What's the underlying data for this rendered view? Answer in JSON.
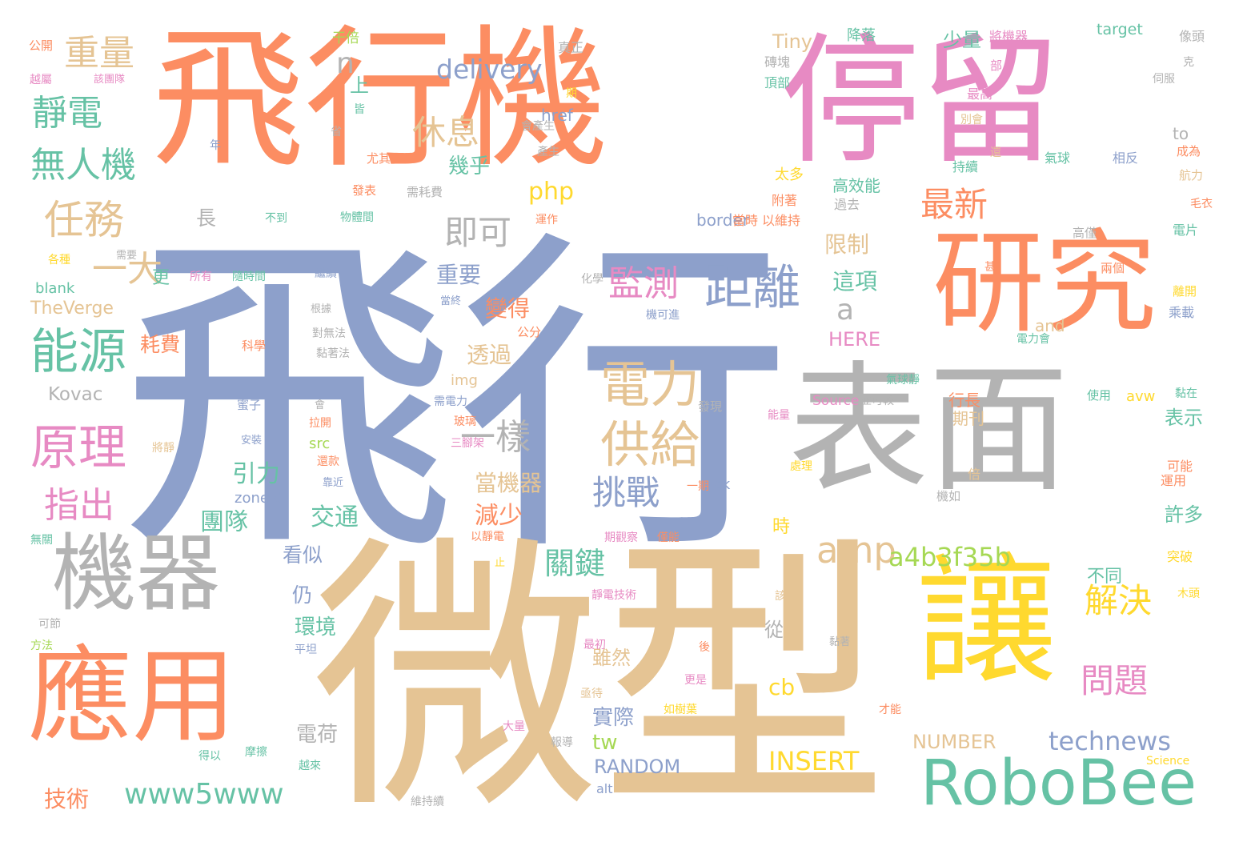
{
  "palette": {
    "orange": "#FC8D62",
    "blue": "#8DA0CB",
    "pink": "#E78AC3",
    "tan": "#E5C494",
    "gray": "#B3B3B3",
    "yellow": "#FFD92F",
    "green": "#66C2A5",
    "lime": "#A6D854"
  },
  "words": [
    {
      "text": "飛行",
      "color": "blue"
    },
    {
      "text": "微型",
      "color": "tan"
    },
    {
      "text": "飛行機",
      "color": "orange"
    },
    {
      "text": "停留",
      "color": "pink"
    },
    {
      "text": "表面",
      "color": "gray"
    },
    {
      "text": "研究",
      "color": "orange"
    },
    {
      "text": "讓",
      "color": "yellow"
    },
    {
      "text": "應用",
      "color": "orange"
    },
    {
      "text": "機器",
      "color": "gray"
    },
    {
      "text": "RoboBee",
      "color": "green"
    },
    {
      "text": "電力",
      "color": "tan"
    },
    {
      "text": "供給",
      "color": "tan"
    },
    {
      "text": "距離",
      "color": "blue"
    },
    {
      "text": "能源",
      "color": "green"
    },
    {
      "text": "原理",
      "color": "pink"
    },
    {
      "text": "任務",
      "color": "tan"
    },
    {
      "text": "重量",
      "color": "tan"
    },
    {
      "text": "靜電",
      "color": "green"
    },
    {
      "text": "無人機",
      "color": "green"
    },
    {
      "text": "一大",
      "color": "tan"
    },
    {
      "text": "指出",
      "color": "pink"
    },
    {
      "text": "監測",
      "color": "pink"
    },
    {
      "text": "即可",
      "color": "gray"
    },
    {
      "text": "休息",
      "color": "tan"
    },
    {
      "text": "最新",
      "color": "orange"
    },
    {
      "text": "一樣",
      "color": "gray"
    },
    {
      "text": "挑戰",
      "color": "blue"
    },
    {
      "text": "amp",
      "color": "tan"
    },
    {
      "text": "解決",
      "color": "yellow"
    },
    {
      "text": "問題",
      "color": "pink"
    },
    {
      "text": "關鍵",
      "color": "green"
    },
    {
      "text": "a4b3f35b",
      "color": "lime"
    },
    {
      "text": "www5www",
      "color": "green"
    },
    {
      "text": "technews",
      "color": "blue"
    },
    {
      "text": "INSERT",
      "color": "yellow"
    },
    {
      "text": "delivery",
      "color": "blue"
    },
    {
      "text": "php",
      "color": "yellow"
    },
    {
      "text": "n",
      "color": "gray"
    },
    {
      "text": "a",
      "color": "gray"
    },
    {
      "text": "cb",
      "color": "yellow"
    },
    {
      "text": "tw",
      "color": "lime"
    },
    {
      "text": "RANDOM",
      "color": "blue"
    },
    {
      "text": "NUMBER",
      "color": "tan"
    },
    {
      "text": "Kovac",
      "color": "gray"
    },
    {
      "text": "TheVerge",
      "color": "tan"
    },
    {
      "text": "HERE",
      "color": "pink"
    },
    {
      "text": "Tiny",
      "color": "tan"
    },
    {
      "text": "target",
      "color": "green"
    },
    {
      "text": "border",
      "color": "blue"
    },
    {
      "text": "href",
      "color": "blue"
    },
    {
      "text": "blank",
      "color": "green"
    },
    {
      "text": "img",
      "color": "tan"
    },
    {
      "text": "src",
      "color": "lime"
    },
    {
      "text": "zoneid",
      "color": "blue"
    },
    {
      "text": "alt",
      "color": "blue"
    },
    {
      "text": "and",
      "color": "tan"
    },
    {
      "text": "to",
      "color": "gray"
    },
    {
      "text": "ck",
      "color": "blue"
    },
    {
      "text": "avw",
      "color": "yellow"
    },
    {
      "text": "Source",
      "color": "pink"
    },
    {
      "text": "Science",
      "color": "yellow"
    },
    {
      "text": "團隊",
      "color": "green"
    },
    {
      "text": "引力",
      "color": "green"
    },
    {
      "text": "交通",
      "color": "green"
    },
    {
      "text": "當機器",
      "color": "tan"
    },
    {
      "text": "減少",
      "color": "orange"
    },
    {
      "text": "透過",
      "color": "tan"
    },
    {
      "text": "變得",
      "color": "orange"
    },
    {
      "text": "重要",
      "color": "blue"
    },
    {
      "text": "這項",
      "color": "green"
    },
    {
      "text": "限制",
      "color": "tan"
    },
    {
      "text": "幾乎",
      "color": "green"
    },
    {
      "text": "少量",
      "color": "green"
    },
    {
      "text": "上",
      "color": "green"
    },
    {
      "text": "長",
      "color": "gray"
    },
    {
      "text": "更",
      "color": "green"
    },
    {
      "text": "耗費",
      "color": "orange"
    },
    {
      "text": "技術",
      "color": "orange"
    },
    {
      "text": "電荷",
      "color": "gray"
    },
    {
      "text": "環境",
      "color": "green"
    },
    {
      "text": "看似",
      "color": "blue"
    },
    {
      "text": "仍",
      "color": "blue"
    },
    {
      "text": "雖然",
      "color": "tan"
    },
    {
      "text": "實際",
      "color": "blue"
    },
    {
      "text": "從",
      "color": "gray"
    },
    {
      "text": "時",
      "color": "yellow"
    },
    {
      "text": "不同",
      "color": "green"
    },
    {
      "text": "表示",
      "color": "green"
    },
    {
      "text": "許多",
      "color": "green"
    },
    {
      "text": "行長",
      "color": "orange"
    },
    {
      "text": "期刊",
      "color": "tan"
    },
    {
      "text": "高效能",
      "color": "green"
    },
    {
      "text": "電片",
      "color": "green"
    },
    {
      "text": "航力",
      "color": "tan"
    },
    {
      "text": "成為",
      "color": "orange"
    },
    {
      "text": "氣球",
      "color": "green"
    },
    {
      "text": "相反",
      "color": "blue"
    },
    {
      "text": "持續",
      "color": "green"
    },
    {
      "text": "太多",
      "color": "yellow"
    },
    {
      "text": "附著",
      "color": "orange"
    },
    {
      "text": "以維持",
      "color": "orange"
    },
    {
      "text": "當時",
      "color": "orange"
    },
    {
      "text": "過去",
      "color": "gray"
    },
    {
      "text": "頂部",
      "color": "green"
    },
    {
      "text": "磚塊",
      "color": "gray"
    },
    {
      "text": "降落",
      "color": "green"
    },
    {
      "text": "將機器",
      "color": "pink"
    },
    {
      "text": "像頭",
      "color": "gray"
    },
    {
      "text": "最高",
      "color": "pink"
    },
    {
      "text": "別會",
      "color": "tan"
    },
    {
      "text": "毛衣",
      "color": "orange"
    },
    {
      "text": "高僅",
      "color": "gray"
    },
    {
      "text": "兩個",
      "color": "orange"
    },
    {
      "text": "離開",
      "color": "yellow"
    },
    {
      "text": "乘載",
      "color": "blue"
    },
    {
      "text": "電力會",
      "color": "green"
    },
    {
      "text": "黏在",
      "color": "green"
    },
    {
      "text": "使用",
      "color": "green"
    },
    {
      "text": "可能",
      "color": "orange"
    },
    {
      "text": "運用",
      "color": "orange"
    },
    {
      "text": "突破",
      "color": "yellow"
    },
    {
      "text": "倍",
      "color": "tan"
    },
    {
      "text": "機如",
      "color": "gray"
    },
    {
      "text": "公開",
      "color": "orange"
    },
    {
      "text": "越屬",
      "color": "pink"
    },
    {
      "text": "該團隊",
      "color": "pink"
    },
    {
      "text": "干倍",
      "color": "lime"
    },
    {
      "text": "真正",
      "color": "gray"
    },
    {
      "text": "期",
      "color": "yellow"
    },
    {
      "text": "會產生",
      "color": "gray"
    },
    {
      "text": "產生",
      "color": "gray"
    },
    {
      "text": "年",
      "color": "blue"
    },
    {
      "text": "尤其",
      "color": "orange"
    },
    {
      "text": "發表",
      "color": "orange"
    },
    {
      "text": "需耗費",
      "color": "gray"
    },
    {
      "text": "不到",
      "color": "green"
    },
    {
      "text": "物體間",
      "color": "green"
    },
    {
      "text": "運作",
      "color": "orange"
    },
    {
      "text": "各種",
      "color": "yellow"
    },
    {
      "text": "需要",
      "color": "gray"
    },
    {
      "text": "所有",
      "color": "pink"
    },
    {
      "text": "隨時間",
      "color": "green"
    },
    {
      "text": "繼續",
      "color": "blue"
    },
    {
      "text": "化學",
      "color": "gray"
    },
    {
      "text": "根據",
      "color": "gray"
    },
    {
      "text": "當終",
      "color": "blue"
    },
    {
      "text": "科學",
      "color": "orange"
    },
    {
      "text": "對無法",
      "color": "gray"
    },
    {
      "text": "黏著法",
      "color": "gray"
    },
    {
      "text": "機可進",
      "color": "blue"
    },
    {
      "text": "公分",
      "color": "orange"
    },
    {
      "text": "需電力",
      "color": "blue"
    },
    {
      "text": "玻璃",
      "color": "orange"
    },
    {
      "text": "三腳架",
      "color": "pink"
    },
    {
      "text": "蜜子",
      "color": "blue"
    },
    {
      "text": "會",
      "color": "gray"
    },
    {
      "text": "拉開",
      "color": "orange"
    },
    {
      "text": "安裝",
      "color": "blue"
    },
    {
      "text": "還款",
      "color": "orange"
    },
    {
      "text": "靠近",
      "color": "blue"
    },
    {
      "text": "將靜",
      "color": "tan"
    },
    {
      "text": "發現",
      "color": "gray"
    },
    {
      "text": "一期",
      "color": "orange"
    },
    {
      "text": "期觀察",
      "color": "pink"
    },
    {
      "text": "僅能",
      "color": "orange"
    },
    {
      "text": "以靜電",
      "color": "orange"
    },
    {
      "text": "止",
      "color": "yellow"
    },
    {
      "text": "靜電技術",
      "color": "pink"
    },
    {
      "text": "最初",
      "color": "pink"
    },
    {
      "text": "亟待",
      "color": "tan"
    },
    {
      "text": "如樹葉",
      "color": "yellow"
    },
    {
      "text": "大量",
      "color": "pink"
    },
    {
      "text": "報導",
      "color": "gray"
    },
    {
      "text": "更是",
      "color": "pink"
    },
    {
      "text": "後",
      "color": "orange"
    },
    {
      "text": "黏著",
      "color": "gray"
    },
    {
      "text": "才能",
      "color": "orange"
    },
    {
      "text": "維持續",
      "color": "gray"
    },
    {
      "text": "越來",
      "color": "green"
    },
    {
      "text": "摩擦",
      "color": "green"
    },
    {
      "text": "得以",
      "color": "green"
    },
    {
      "text": "平坦",
      "color": "blue"
    },
    {
      "text": "可節",
      "color": "gray"
    },
    {
      "text": "方法",
      "color": "lime"
    },
    {
      "text": "無關",
      "color": "green"
    },
    {
      "text": "氣球靜",
      "color": "green"
    },
    {
      "text": "能量",
      "color": "pink"
    },
    {
      "text": "處理",
      "color": "yellow"
    },
    {
      "text": "並可較",
      "color": "gray"
    },
    {
      "text": "皆",
      "color": "green"
    },
    {
      "text": "省",
      "color": "gray"
    },
    {
      "text": "部",
      "color": "pink"
    },
    {
      "text": "克",
      "color": "gray"
    },
    {
      "text": "還",
      "color": "tan"
    },
    {
      "text": "甚",
      "color": "orange"
    },
    {
      "text": "該",
      "color": "tan"
    },
    {
      "text": "木頭",
      "color": "yellow"
    },
    {
      "text": "伺服",
      "color": "gray"
    }
  ]
}
